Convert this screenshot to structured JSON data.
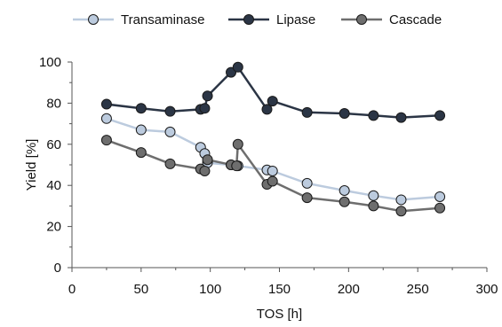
{
  "chart_data": {
    "type": "line",
    "xlabel": "TOS [h]",
    "ylabel": "Yield [%]",
    "xlim": [
      0,
      300
    ],
    "ylim": [
      0,
      100
    ],
    "xticks": [
      0,
      50,
      100,
      150,
      200,
      250,
      300
    ],
    "yticks": [
      0,
      20,
      40,
      60,
      80,
      100
    ],
    "grid": false,
    "legend_position": "top",
    "series": [
      {
        "name": "Transaminase",
        "color": "#bccbde",
        "x": [
          25,
          50,
          71,
          93,
          96,
          98,
          115,
          120,
          141,
          145,
          170,
          197,
          218,
          238,
          266
        ],
        "y": [
          72.5,
          67,
          66,
          58.5,
          55.5,
          51,
          50,
          49.5,
          47.5,
          47,
          41,
          37.5,
          35,
          33,
          34.5
        ]
      },
      {
        "name": "Lipase",
        "color": "#2b3545",
        "x": [
          25,
          50,
          71,
          93,
          96,
          98,
          115,
          120,
          141,
          145,
          170,
          197,
          218,
          238,
          266
        ],
        "y": [
          79.5,
          77.5,
          76,
          77,
          77.5,
          83.5,
          95,
          97.5,
          77,
          81,
          75.5,
          75,
          74,
          73,
          74
        ]
      },
      {
        "name": "Cascade",
        "color": "#6e6e6e",
        "x": [
          25,
          50,
          71,
          93,
          96,
          98,
          115,
          119,
          120,
          141,
          145,
          170,
          197,
          218,
          238,
          266
        ],
        "y": [
          62,
          56,
          50.5,
          48,
          47,
          52.5,
          50,
          49.5,
          60,
          40.5,
          42,
          34,
          32,
          30,
          27.5,
          29
        ]
      }
    ]
  }
}
